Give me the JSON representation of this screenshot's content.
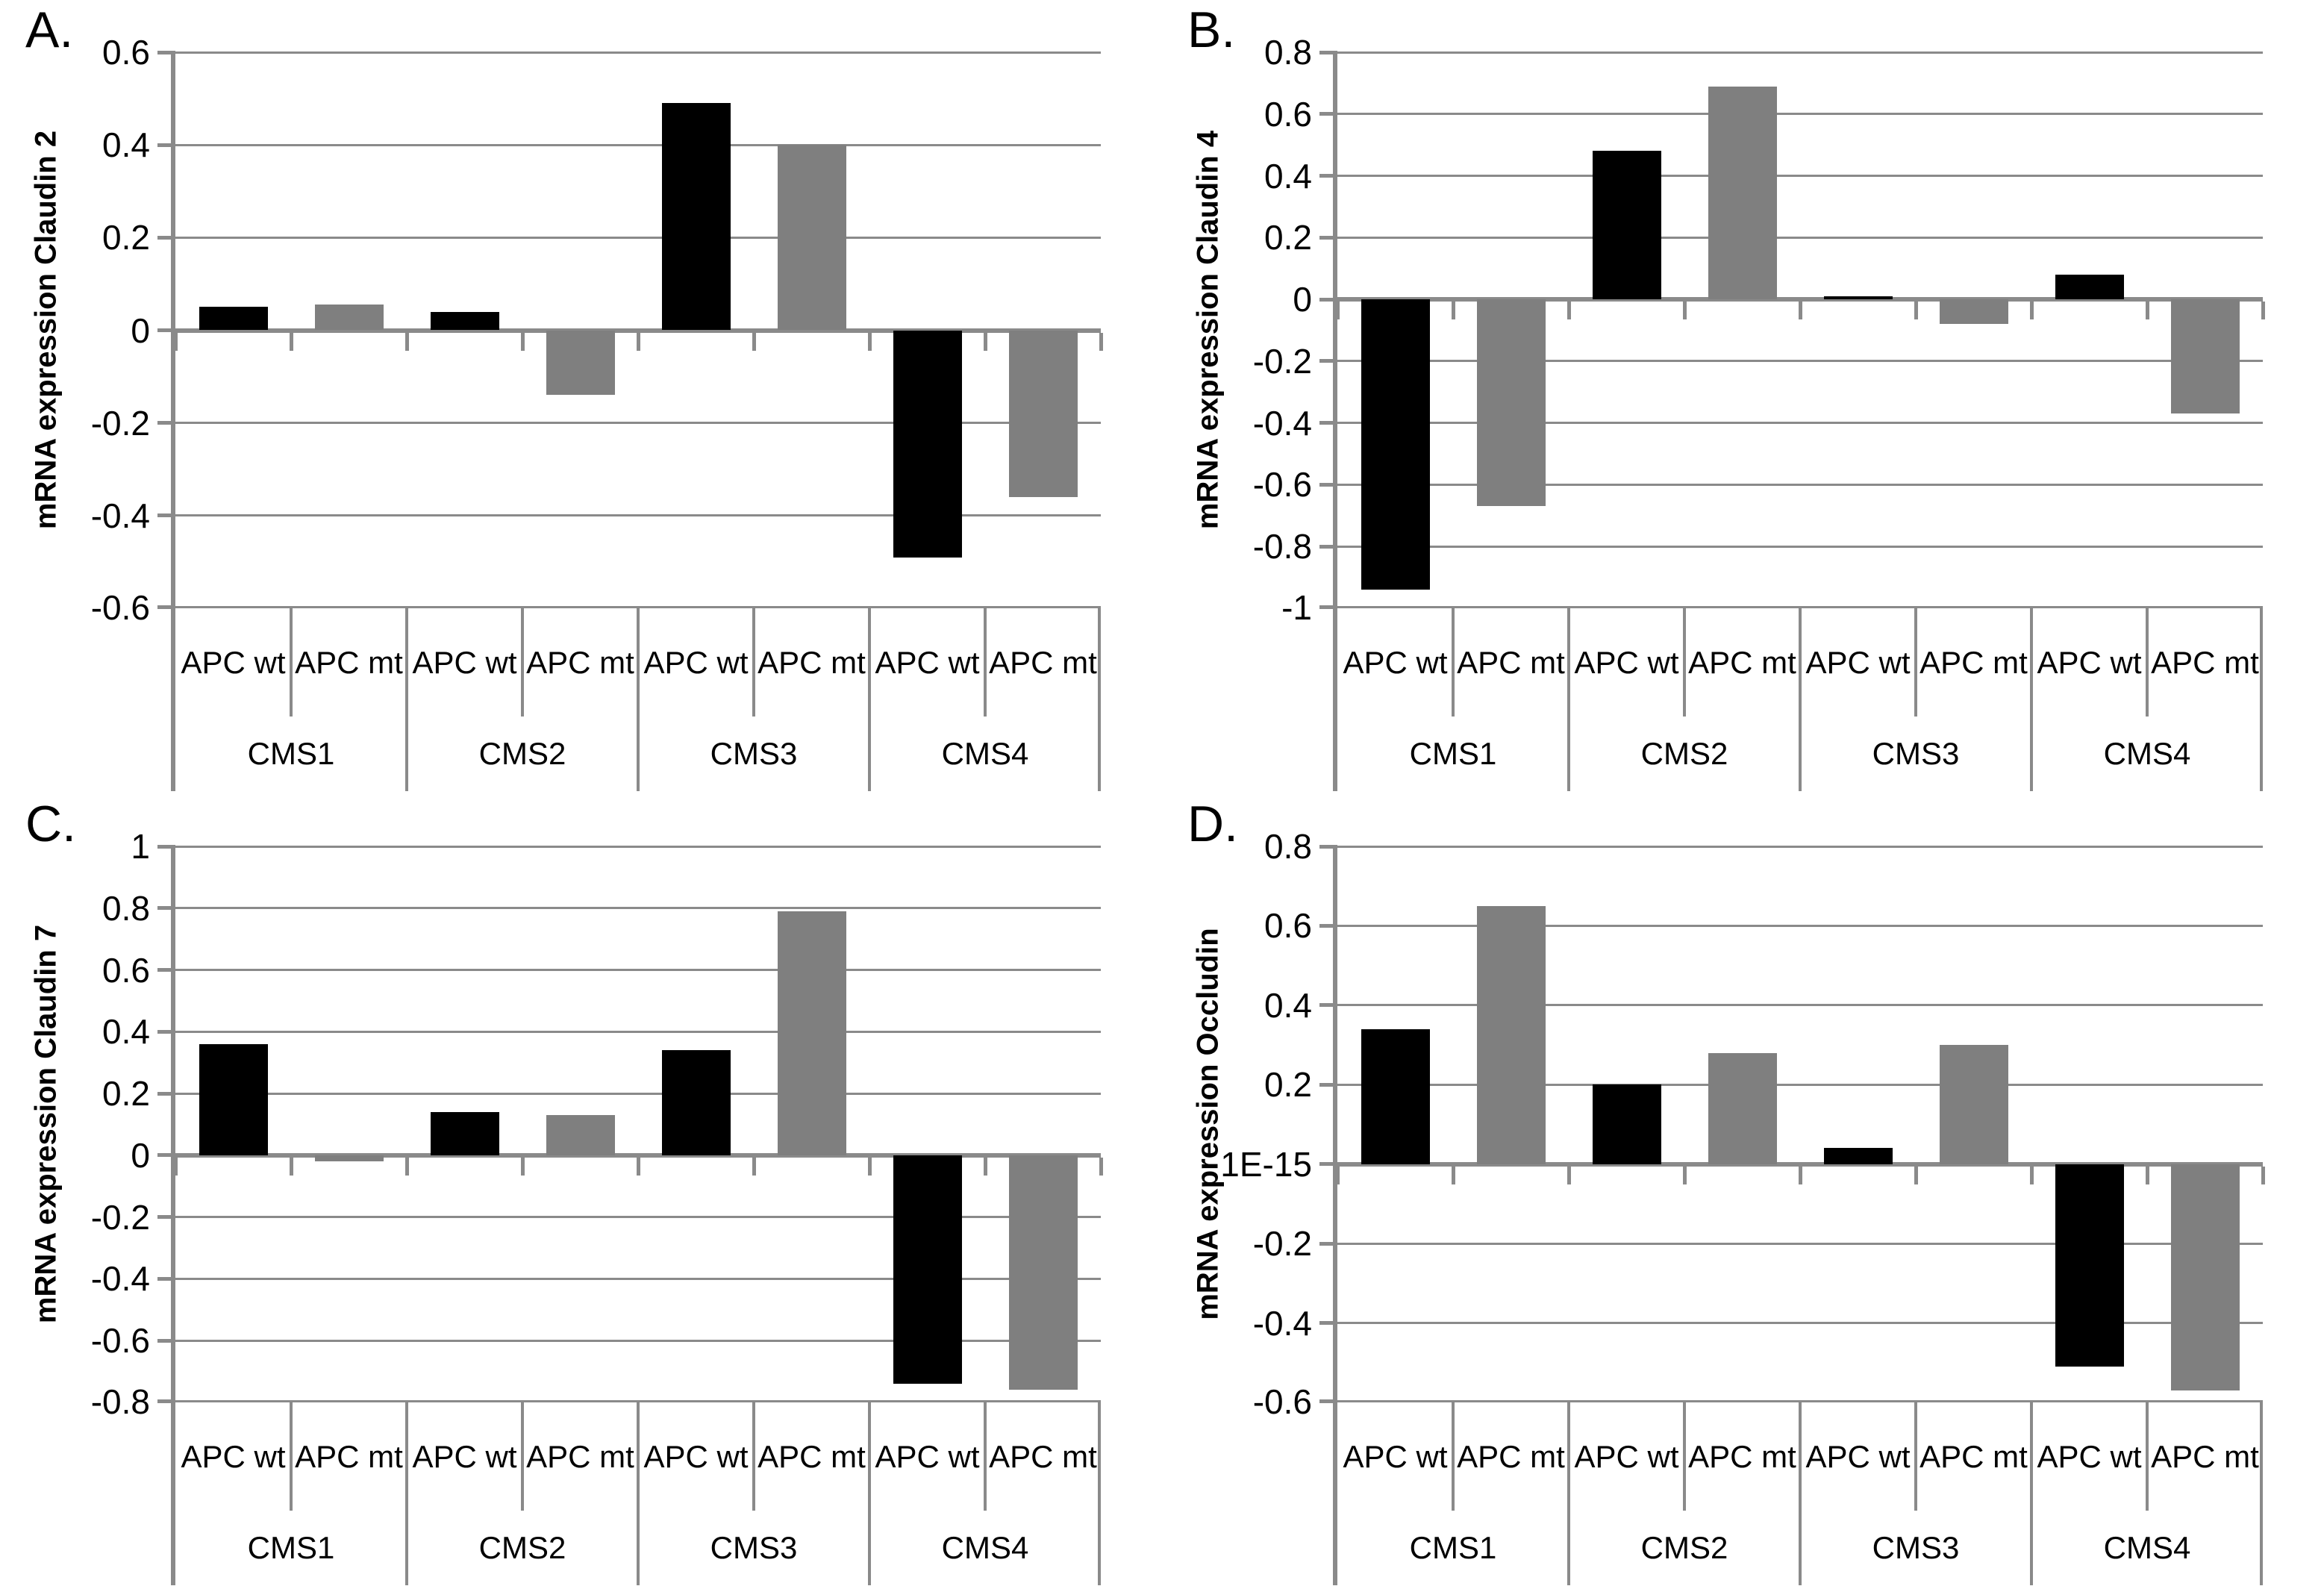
{
  "colors": {
    "bar_apc_wt": "#000000",
    "bar_apc_mt": "#7f7f7f",
    "axis_gray": "#8a8a8a",
    "background": "#ffffff"
  },
  "chart_data": [
    {
      "letter": "A.",
      "type": "bar",
      "ylabel": "mRNA expression Claudin 2",
      "categories": [
        "CMS1",
        "CMS2",
        "CMS3",
        "CMS4"
      ],
      "series": [
        {
          "name": "APC wt",
          "color": "#000000",
          "values": [
            0.05,
            0.04,
            0.49,
            -0.49
          ]
        },
        {
          "name": "APC mt",
          "color": "#7f7f7f",
          "values": [
            0.055,
            -0.14,
            0.4,
            -0.36
          ]
        }
      ],
      "ylim": [
        -0.6,
        0.6
      ],
      "ystep": 0.2,
      "ytick_labels": [
        "0.6",
        "0.4",
        "0.2",
        "0",
        "-0.2",
        "-0.4",
        "-0.6"
      ],
      "grid": true,
      "legend_position": "none"
    },
    {
      "letter": "B.",
      "type": "bar",
      "ylabel": "mRNA expression Claudin 4",
      "categories": [
        "CMS1",
        "CMS2",
        "CMS3",
        "CMS4"
      ],
      "series": [
        {
          "name": "APC wt",
          "color": "#000000",
          "values": [
            -0.94,
            0.48,
            0.01,
            0.08
          ]
        },
        {
          "name": "APC mt",
          "color": "#7f7f7f",
          "values": [
            -0.67,
            0.69,
            -0.08,
            -0.37
          ]
        }
      ],
      "ylim": [
        -1,
        0.8
      ],
      "ystep": 0.2,
      "ytick_labels": [
        "0.8",
        "0.6",
        "0.4",
        "0.2",
        "0",
        "-0.2",
        "-0.4",
        "-0.6",
        "-0.8",
        "-1"
      ],
      "grid": true,
      "legend_position": "none"
    },
    {
      "letter": "C.",
      "type": "bar",
      "ylabel": "mRNA expression Claudin 7",
      "categories": [
        "CMS1",
        "CMS2",
        "CMS3",
        "CMS4"
      ],
      "series": [
        {
          "name": "APC wt",
          "color": "#000000",
          "values": [
            0.36,
            0.14,
            0.34,
            -0.74
          ]
        },
        {
          "name": "APC mt",
          "color": "#7f7f7f",
          "values": [
            -0.02,
            0.13,
            0.79,
            -0.76
          ]
        }
      ],
      "ylim": [
        -0.8,
        1
      ],
      "ystep": 0.2,
      "ytick_labels": [
        "1",
        "0.8",
        "0.6",
        "0.4",
        "0.2",
        "0",
        "-0.2",
        "-0.4",
        "-0.6",
        "-0.8"
      ],
      "grid": true,
      "legend_position": "none"
    },
    {
      "letter": "D.",
      "type": "bar",
      "ylabel": "mRNA expression Occludin",
      "categories": [
        "CMS1",
        "CMS2",
        "CMS3",
        "CMS4"
      ],
      "series": [
        {
          "name": "APC wt",
          "color": "#000000",
          "values": [
            0.34,
            0.2,
            0.04,
            -0.51
          ]
        },
        {
          "name": "APC mt",
          "color": "#7f7f7f",
          "values": [
            0.65,
            0.28,
            0.3,
            -0.57
          ]
        }
      ],
      "ylim": [
        -0.6,
        0.8
      ],
      "ystep": 0.2,
      "ytick_labels": [
        "0.8",
        "0.6",
        "0.4",
        "0.2",
        "1E-15",
        "-0.2",
        "-0.4",
        "-0.6"
      ],
      "grid": true,
      "legend_position": "none"
    }
  ]
}
